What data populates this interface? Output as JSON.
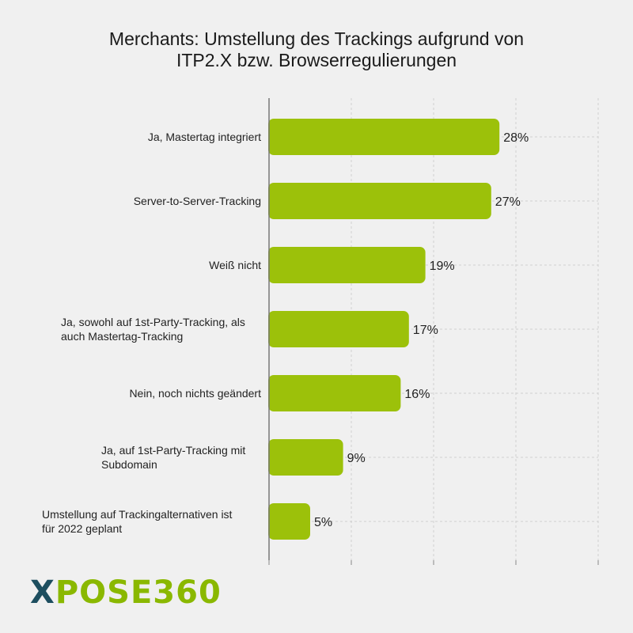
{
  "title_lines": [
    "Merchants: Umstellung des Trackings aufgrund von",
    "ITP2.X bzw. Browserregulierungen"
  ],
  "logo": {
    "text_x": "X",
    "text_rest": "POSE360"
  },
  "colors": {
    "bar": "#9cc10a",
    "background": "#f0f0f0",
    "logo_dark": "#1d4e5f",
    "logo_green": "#8ab800"
  },
  "chart_data": {
    "type": "bar",
    "orientation": "horizontal",
    "title": "Merchants: Umstellung des Trackings aufgrund von ITP2.X bzw. Browserregulierungen",
    "categories": [
      [
        "Ja, Mastertag integriert"
      ],
      [
        "Server-to-Server-Tracking"
      ],
      [
        "Weiß nicht"
      ],
      [
        "Ja, sowohl auf 1st-Party-Tracking, als",
        "auch Mastertag-Tracking"
      ],
      [
        "Nein, noch nichts geändert"
      ],
      [
        "Ja, auf 1st-Party-Tracking mit",
        "Subdomain"
      ],
      [
        "Umstellung auf Trackingalternativen ist",
        "für 2022 geplant"
      ]
    ],
    "values": [
      28,
      27,
      19,
      17,
      16,
      9,
      5
    ],
    "data_labels": [
      "28%",
      "27%",
      "19%",
      "17%",
      "16%",
      "9%",
      "5%"
    ],
    "xlim": [
      0,
      40
    ],
    "grid": true
  }
}
